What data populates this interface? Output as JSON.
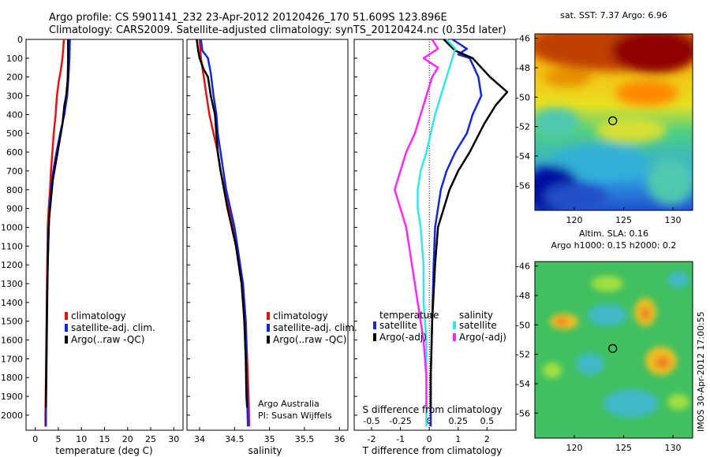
{
  "header": {
    "line1": "Argo profile: CS 5901141_232 23-Apr-2012 20120426_170 51.609S 123.896E",
    "line2": "Climatology: CARS2009. Satellite-adjusted climatology: synTS_20120424.nc (0.35d later)"
  },
  "colors": {
    "climatology": "#e81010",
    "satellite": "#1428d8",
    "argo": "#000000",
    "satellite_salinity": "#30e8e8",
    "argo_salinity": "#ff28ff"
  },
  "depth_ticks": [
    "0",
    "100",
    "200",
    "300",
    "400",
    "500",
    "600",
    "700",
    "800",
    "900",
    "1000",
    "1100",
    "1200",
    "1300",
    "1400",
    "1500",
    "1600",
    "1700",
    "1800",
    "1900",
    "2000"
  ],
  "chart_data": [
    {
      "type": "line",
      "name": "temperature",
      "xlabel": "temperature (deg C)",
      "ylabel": "",
      "xlim": [
        -2,
        32
      ],
      "ylim": [
        2080,
        0
      ],
      "x_ticks": [
        "0",
        "5",
        "10",
        "15",
        "20",
        "25",
        "30"
      ],
      "legend": {
        "placement": "bottom-left",
        "entries": [
          "climatology",
          "satellite-adj. clim.",
          "Argo(..raw -QC)"
        ]
      },
      "series": [
        {
          "name": "climatology",
          "color": "#e81010",
          "points": [
            [
              6.2,
              0
            ],
            [
              5.9,
              100
            ],
            [
              5.5,
              170
            ],
            [
              5.1,
              220
            ],
            [
              4.7,
              300
            ],
            [
              4.4,
              400
            ],
            [
              4.0,
              500
            ],
            [
              3.7,
              600
            ],
            [
              3.4,
              700
            ],
            [
              3.2,
              800
            ],
            [
              2.9,
              900
            ],
            [
              2.7,
              1000
            ],
            [
              2.6,
              1200
            ],
            [
              2.5,
              1400
            ],
            [
              2.4,
              1600
            ],
            [
              2.3,
              1800
            ],
            [
              2.2,
              2000
            ],
            [
              2.2,
              2060
            ]
          ]
        },
        {
          "name": "satellite-adj. clim.",
          "color": "#1428d8",
          "points": [
            [
              7.5,
              0
            ],
            [
              7.4,
              100
            ],
            [
              7.2,
              200
            ],
            [
              6.9,
              300
            ],
            [
              6.3,
              400
            ],
            [
              5.4,
              500
            ],
            [
              4.6,
              600
            ],
            [
              3.9,
              700
            ],
            [
              3.4,
              800
            ],
            [
              3.1,
              900
            ],
            [
              2.9,
              1000
            ],
            [
              2.7,
              1200
            ],
            [
              2.6,
              1400
            ],
            [
              2.5,
              1600
            ],
            [
              2.4,
              1800
            ],
            [
              2.3,
              2000
            ],
            [
              2.3,
              2060
            ]
          ]
        },
        {
          "name": "Argo(..raw -QC)",
          "color": "#000000",
          "points": [
            [
              7.1,
              0
            ],
            [
              7.1,
              120
            ],
            [
              7.0,
              220
            ],
            [
              6.7,
              300
            ],
            [
              6.3,
              350
            ],
            [
              5.9,
              450
            ],
            [
              5.2,
              550
            ],
            [
              4.5,
              650
            ],
            [
              3.8,
              750
            ],
            [
              3.4,
              850
            ],
            [
              3.0,
              950
            ],
            [
              2.8,
              1100
            ],
            [
              2.6,
              1300
            ],
            [
              2.5,
              1500
            ],
            [
              2.4,
              1700
            ],
            [
              2.3,
              1900
            ],
            [
              2.3,
              1960
            ]
          ]
        }
      ]
    },
    {
      "type": "line",
      "name": "salinity",
      "xlabel": "salinity",
      "ylabel": "",
      "xlim": [
        33.82,
        36.12
      ],
      "ylim": [
        2080,
        0
      ],
      "x_ticks": [
        "34",
        "34.5",
        "35",
        "35.5",
        "36"
      ],
      "legend": {
        "placement": "bottom-left",
        "entries": [
          "climatology",
          "satellite-adj. clim.",
          "Argo(..raw -QC)"
        ]
      },
      "annotation": [
        "Argo Australia",
        "PI: Susan Wijffels"
      ],
      "series": [
        {
          "name": "climatology",
          "color": "#e81010",
          "points": [
            [
              34.0,
              0
            ],
            [
              34.02,
              100
            ],
            [
              34.06,
              200
            ],
            [
              34.1,
              300
            ],
            [
              34.14,
              400
            ],
            [
              34.2,
              500
            ],
            [
              34.26,
              600
            ],
            [
              34.3,
              700
            ],
            [
              34.36,
              800
            ],
            [
              34.42,
              900
            ],
            [
              34.48,
              1000
            ],
            [
              34.54,
              1100
            ],
            [
              34.58,
              1200
            ],
            [
              34.62,
              1300
            ],
            [
              34.64,
              1400
            ],
            [
              34.66,
              1500
            ],
            [
              34.68,
              1700
            ],
            [
              34.7,
              1900
            ],
            [
              34.71,
              2060
            ]
          ]
        },
        {
          "name": "satellite-adj. clim.",
          "color": "#1428d8",
          "points": [
            [
              34.02,
              0
            ],
            [
              34.04,
              60
            ],
            [
              34.12,
              100
            ],
            [
              34.16,
              180
            ],
            [
              34.2,
              300
            ],
            [
              34.24,
              400
            ],
            [
              34.26,
              500
            ],
            [
              34.3,
              600
            ],
            [
              34.34,
              700
            ],
            [
              34.38,
              800
            ],
            [
              34.44,
              900
            ],
            [
              34.5,
              1000
            ],
            [
              34.54,
              1100
            ],
            [
              34.58,
              1200
            ],
            [
              34.62,
              1300
            ],
            [
              34.64,
              1400
            ],
            [
              34.66,
              1500
            ],
            [
              34.67,
              1700
            ],
            [
              34.68,
              1900
            ],
            [
              34.69,
              2060
            ]
          ]
        },
        {
          "name": "Argo(..raw -QC)",
          "color": "#000000",
          "points": [
            [
              33.96,
              0
            ],
            [
              33.98,
              60
            ],
            [
              34.0,
              100
            ],
            [
              34.06,
              160
            ],
            [
              34.12,
              200
            ],
            [
              34.16,
              300
            ],
            [
              34.22,
              400
            ],
            [
              34.26,
              600
            ],
            [
              34.3,
              700
            ],
            [
              34.35,
              800
            ],
            [
              34.4,
              900
            ],
            [
              34.46,
              1000
            ],
            [
              34.52,
              1100
            ],
            [
              34.56,
              1200
            ],
            [
              34.6,
              1300
            ],
            [
              34.62,
              1400
            ],
            [
              34.64,
              1500
            ],
            [
              34.66,
              1700
            ],
            [
              34.67,
              1900
            ],
            [
              34.68,
              1960
            ]
          ]
        }
      ]
    },
    {
      "type": "line",
      "name": "difference",
      "xlabel": "T difference from climatology",
      "xlabel2": "S difference from climatology",
      "xlim": [
        -2.6,
        3.0
      ],
      "ylim": [
        2080,
        0
      ],
      "x_ticks": [
        "-2",
        "-1",
        "0",
        "1",
        "2"
      ],
      "x_ticks_s": [
        "-0.5",
        "-0.25",
        "0",
        "0.25",
        "0.5"
      ],
      "legend": {
        "temperature_header": "temperature",
        "salinity_header": "salinity",
        "entries": [
          "satellite",
          "Argo(-adj)",
          "satellite",
          "Argo(-adj)"
        ]
      },
      "series": [
        {
          "name": "satellite",
          "group": "temperature",
          "color": "#1428d8",
          "points": [
            [
              0.8,
              0
            ],
            [
              1.3,
              50
            ],
            [
              1.0,
              80
            ],
            [
              1.4,
              100
            ],
            [
              1.7,
              200
            ],
            [
              1.8,
              300
            ],
            [
              1.5,
              400
            ],
            [
              1.3,
              500
            ],
            [
              0.9,
              600
            ],
            [
              0.6,
              700
            ],
            [
              0.4,
              800
            ],
            [
              0.3,
              900
            ],
            [
              0.2,
              1000
            ],
            [
              0.15,
              1200
            ],
            [
              0.1,
              1500
            ],
            [
              0.05,
              1800
            ],
            [
              0.05,
              2060
            ]
          ]
        },
        {
          "name": "Argo(-adj)",
          "group": "temperature",
          "color": "#000000",
          "points": [
            [
              0.5,
              0
            ],
            [
              0.9,
              60
            ],
            [
              1.5,
              100
            ],
            [
              2.1,
              200
            ],
            [
              2.7,
              280
            ],
            [
              2.3,
              350
            ],
            [
              1.9,
              450
            ],
            [
              1.4,
              600
            ],
            [
              1.0,
              700
            ],
            [
              0.7,
              800
            ],
            [
              0.5,
              900
            ],
            [
              0.3,
              1000
            ],
            [
              0.2,
              1200
            ],
            [
              0.1,
              1500
            ],
            [
              0.05,
              1800
            ],
            [
              0.05,
              1960
            ]
          ]
        },
        {
          "name": "satellite",
          "group": "salinity",
          "color": "#30e8e8",
          "points": [
            [
              0.6,
              0
            ],
            [
              0.9,
              50
            ],
            [
              0.8,
              100
            ],
            [
              0.6,
              200
            ],
            [
              0.4,
              300
            ],
            [
              0.2,
              400
            ],
            [
              0.05,
              500
            ],
            [
              -0.1,
              600
            ],
            [
              -0.3,
              700
            ],
            [
              -0.4,
              800
            ],
            [
              -0.4,
              900
            ],
            [
              -0.3,
              1000
            ],
            [
              -0.2,
              1200
            ],
            [
              -0.2,
              1400
            ],
            [
              -0.1,
              1600
            ],
            [
              -0.1,
              1800
            ],
            [
              -0.1,
              2060
            ]
          ]
        },
        {
          "name": "Argo(-adj)",
          "group": "salinity",
          "color": "#ff28ff",
          "points": [
            [
              0.1,
              0
            ],
            [
              0.3,
              50
            ],
            [
              0.0,
              80
            ],
            [
              -0.2,
              100
            ],
            [
              0.3,
              150
            ],
            [
              0.1,
              200
            ],
            [
              -0.1,
              300
            ],
            [
              -0.3,
              400
            ],
            [
              -0.5,
              500
            ],
            [
              -0.8,
              600
            ],
            [
              -1.0,
              700
            ],
            [
              -1.2,
              800
            ],
            [
              -1.0,
              900
            ],
            [
              -0.8,
              1000
            ],
            [
              -0.6,
              1200
            ],
            [
              -0.4,
              1400
            ],
            [
              -0.2,
              1600
            ],
            [
              -0.1,
              1800
            ],
            [
              -0.1,
              1960
            ]
          ]
        }
      ]
    },
    {
      "type": "heatmap",
      "name": "sst_map",
      "title": "sat. SST: 7.37 Argo: 6.96",
      "xlim": [
        116,
        132
      ],
      "ylim": [
        -57.7,
        -45.7
      ],
      "x_ticks": [
        "120",
        "125",
        "130"
      ],
      "y_ticks": [
        "-46",
        "-48",
        "-50",
        "-52",
        "-54",
        "-56"
      ],
      "marker": {
        "lon": 123.896,
        "lat": -51.609
      }
    },
    {
      "type": "heatmap",
      "name": "sla_map",
      "title": "Altim. SLA: 0.16",
      "subtitle": "Argo h1000: 0.15 h2000: 0.2",
      "xlim": [
        116,
        132
      ],
      "ylim": [
        -57.7,
        -45.7
      ],
      "x_ticks": [
        "120",
        "125",
        "130"
      ],
      "y_ticks": [
        "-46",
        "-48",
        "-50",
        "-52",
        "-54",
        "-56"
      ],
      "marker": {
        "lon": 123.896,
        "lat": -51.609
      }
    }
  ],
  "side_text": "IMOS 30-Apr-2012 17:00:55"
}
